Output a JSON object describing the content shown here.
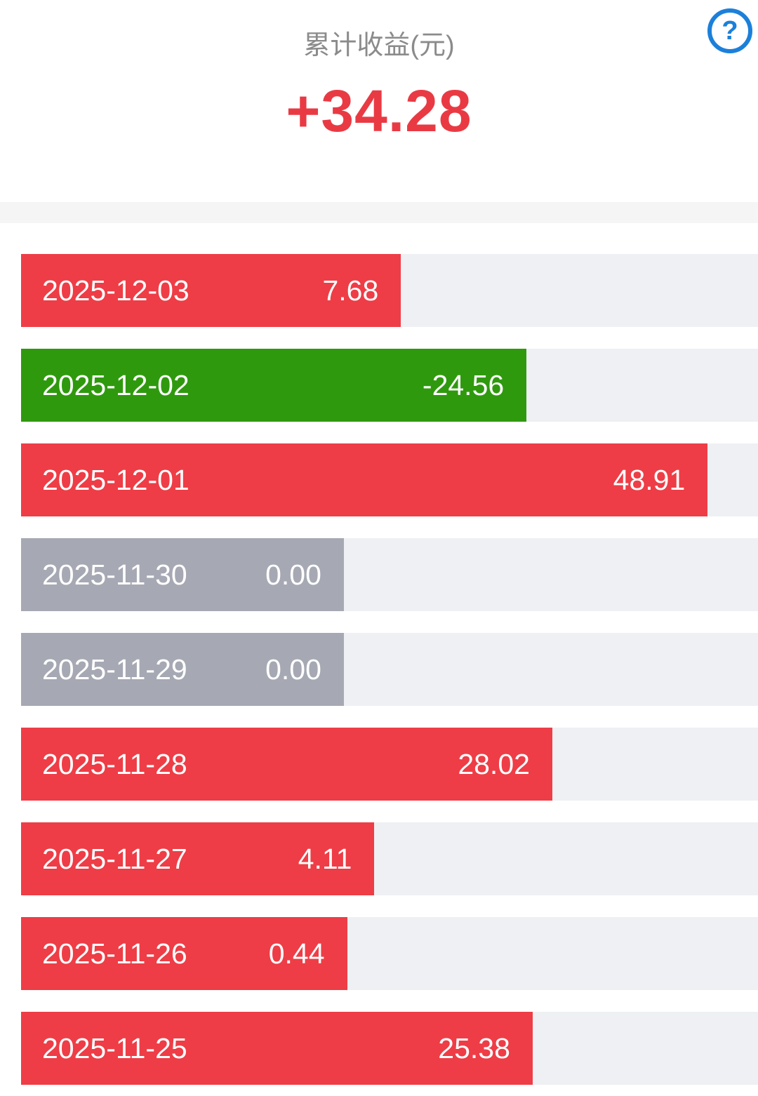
{
  "header": {
    "title": "累计收益(元)",
    "total": "+34.28",
    "help_icon": "?"
  },
  "chart_data": {
    "type": "bar",
    "orientation": "horizontal",
    "title": "累计收益(元)",
    "total_label": "+34.28",
    "value_unit": "元",
    "categories": [
      "2025-12-03",
      "2025-12-02",
      "2025-12-01",
      "2025-11-30",
      "2025-11-29",
      "2025-11-28",
      "2025-11-27",
      "2025-11-26",
      "2025-11-25"
    ],
    "values": [
      7.68,
      -24.56,
      48.91,
      0.0,
      0.0,
      28.02,
      4.11,
      0.44,
      25.38
    ],
    "value_labels": [
      "7.68",
      "-24.56",
      "48.91",
      "0.00",
      "0.00",
      "28.02",
      "4.11",
      "0.44",
      "25.38"
    ],
    "colors": {
      "positive": "#ee3d46",
      "negative": "#2f990e",
      "zero": "#a6a9b3",
      "track": "#eef0f3",
      "total_text": "#e93a44",
      "title_text": "#8b8b8b",
      "help_icon": "#1c80da"
    },
    "layout": {
      "legend": false,
      "grid": false,
      "bar_base_width_frac": 0.438,
      "bar_frac_per_unit": 0.010095
    }
  }
}
